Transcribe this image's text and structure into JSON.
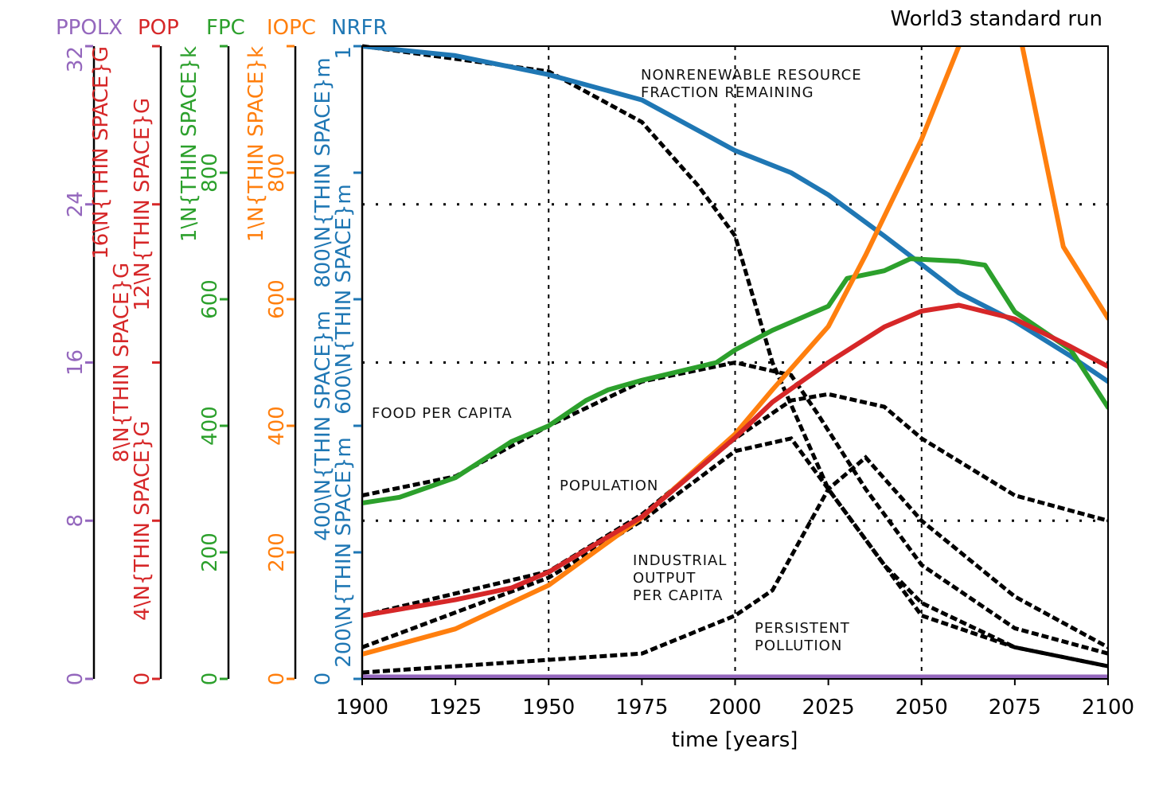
{
  "chart_data": {
    "type": "line",
    "title": "World3 standard run",
    "xlabel": "time [years]",
    "xlim": [
      1900,
      2100
    ],
    "xticks": [
      1900,
      1925,
      1950,
      1975,
      2000,
      2025,
      2050,
      2075,
      2100
    ],
    "grid": false,
    "axes": [
      {
        "name": "PPOLX",
        "color": "#9467bd",
        "ylim": [
          0,
          32
        ],
        "ticks": [
          0,
          8,
          16,
          24,
          32
        ],
        "tick_labels": [
          "0",
          "8",
          "16",
          "24",
          "32"
        ]
      },
      {
        "name": "POP",
        "color": "#d62728",
        "ylim": [
          0,
          16
        ],
        "ticks": [
          0,
          4,
          8,
          12,
          16
        ],
        "tick_labels": [
          "0",
          "4\\N{THIN SPACE}G",
          "8\\N{THIN SPACE}G",
          "12\\N{THIN SPACE}G",
          "16\\N{THIN SPACE}G"
        ]
      },
      {
        "name": "FPC",
        "color": "#2ca02c",
        "ylim": [
          0,
          1000
        ],
        "ticks": [
          0,
          200,
          400,
          600,
          800,
          1000
        ],
        "tick_labels": [
          "0",
          "200",
          "400",
          "600",
          "800",
          "1\\N{THIN SPACE}k"
        ]
      },
      {
        "name": "IOPC",
        "color": "#ff7f0e",
        "ylim": [
          0,
          1000
        ],
        "ticks": [
          0,
          200,
          400,
          600,
          800,
          1000
        ],
        "tick_labels": [
          "0",
          "200",
          "400",
          "600",
          "800",
          "1\\N{THIN SPACE}k"
        ]
      },
      {
        "name": "NRFR",
        "color": "#1f77b4",
        "ylim": [
          0,
          1
        ],
        "ticks": [
          0,
          0.2,
          0.4,
          0.6,
          0.8,
          1
        ],
        "tick_labels": [
          "0",
          "200\\N{THIN SPACE}m",
          "400\\N{THIN SPACE}m",
          "600\\N{THIN SPACE}m",
          "800\\N{THIN SPACE}m",
          "1"
        ]
      }
    ],
    "series": [
      {
        "name": "NRFR",
        "axis": 4,
        "color": "#1f77b4",
        "x": [
          1900,
          1925,
          1950,
          1975,
          2000,
          2015,
          2025,
          2040,
          2050,
          2060,
          2075,
          2090,
          2100
        ],
        "y": [
          1.0,
          0.985,
          0.955,
          0.915,
          0.835,
          0.8,
          0.765,
          0.7,
          0.655,
          0.61,
          0.565,
          0.51,
          0.47
        ]
      },
      {
        "name": "FPC",
        "axis": 2,
        "color": "#2ca02c",
        "x": [
          1900,
          1910,
          1925,
          1940,
          1950,
          1960,
          1966,
          1975,
          1995,
          2000,
          2010,
          2025,
          2030,
          2040,
          2047,
          2060,
          2067,
          2075,
          2090,
          2100
        ],
        "y": [
          278,
          287,
          318,
          375,
          400,
          440,
          457,
          472,
          500,
          520,
          551,
          589,
          633,
          645,
          664,
          660,
          654,
          580,
          520,
          429
        ]
      },
      {
        "name": "IOPC",
        "axis": 3,
        "color": "#ff7f0e",
        "x": [
          1900,
          1925,
          1950,
          1975,
          2000,
          2010,
          2025,
          2035,
          2050,
          2060,
          2068,
          2077,
          2088,
          2100
        ],
        "y": [
          39,
          79,
          148,
          255,
          387,
          457,
          557,
          670,
          853,
          1000,
          1180,
          1000,
          683,
          570
        ]
      },
      {
        "name": "POP",
        "axis": 1,
        "color": "#d62728",
        "x": [
          1900,
          1925,
          1940,
          1950,
          1975,
          2000,
          2010,
          2025,
          2040,
          2050,
          2060,
          2075,
          2090,
          2100
        ],
        "y": [
          1.6,
          2.0,
          2.3,
          2.7,
          4.1,
          6.1,
          7.0,
          8.0,
          8.9,
          9.3,
          9.45,
          9.1,
          8.4,
          7.9
        ]
      },
      {
        "name": "PPOLX",
        "axis": 0,
        "color": "#9467bd",
        "x": [
          1900,
          1950,
          2000,
          2050,
          2100
        ],
        "y": [
          0.1,
          0.1,
          0.1,
          0.1,
          0.1
        ]
      }
    ],
    "background_traces": [
      {
        "name": "nonrenewable-resource-original",
        "x": [
          1900,
          1950,
          1975,
          1990,
          2000,
          2010,
          2025,
          2050,
          2075,
          2100
        ],
        "y": [
          1.0,
          0.96,
          0.88,
          0.78,
          0.7,
          0.5,
          0.3,
          0.1,
          0.05,
          0.02
        ]
      },
      {
        "name": "food-per-capita-original",
        "x": [
          1900,
          1925,
          1950,
          1975,
          2000,
          2015,
          2022,
          2035,
          2050,
          2075,
          2100
        ],
        "y": [
          0.29,
          0.32,
          0.4,
          0.47,
          0.5,
          0.48,
          0.42,
          0.3,
          0.18,
          0.08,
          0.04
        ]
      },
      {
        "name": "population-original",
        "x": [
          1900,
          1950,
          1975,
          2000,
          2015,
          2025,
          2040,
          2050,
          2075,
          2100
        ],
        "y": [
          0.1,
          0.17,
          0.26,
          0.38,
          0.44,
          0.45,
          0.43,
          0.38,
          0.29,
          0.25
        ]
      },
      {
        "name": "industrial-output-original",
        "x": [
          1900,
          1950,
          1975,
          2000,
          2015,
          2025,
          2040,
          2050,
          2075,
          2100
        ],
        "y": [
          0.05,
          0.16,
          0.25,
          0.36,
          0.38,
          0.3,
          0.18,
          0.12,
          0.05,
          0.02
        ]
      },
      {
        "name": "persistent-pollution-original",
        "x": [
          1900,
          1950,
          1975,
          2000,
          2010,
          2025,
          2035,
          2050,
          2075,
          2100
        ],
        "y": [
          0.01,
          0.03,
          0.04,
          0.1,
          0.14,
          0.3,
          0.35,
          0.25,
          0.13,
          0.05
        ]
      }
    ],
    "annotations": [
      {
        "lines": [
          "NONRENEWABLE RESOURCE",
          "FRACTION REMAINING"
        ]
      },
      {
        "lines": [
          "FOOD PER CAPITA"
        ]
      },
      {
        "lines": [
          "POPULATION"
        ]
      },
      {
        "lines": [
          "INDUSTRIAL",
          "OUTPUT",
          "PER CAPITA"
        ]
      },
      {
        "lines": [
          "PERSISTENT",
          "POLLUTION"
        ]
      }
    ]
  }
}
